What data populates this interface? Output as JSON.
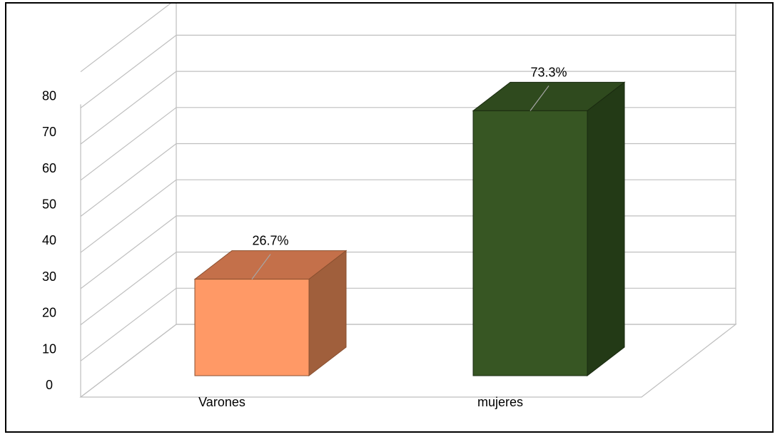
{
  "chart_data": {
    "type": "bar",
    "categories": [
      "Varones",
      "mujeres"
    ],
    "values": [
      26.7,
      73.3
    ],
    "data_labels": [
      "26.7%",
      "73.3%"
    ],
    "yticks": [
      0,
      10,
      20,
      30,
      40,
      50,
      60,
      70,
      80
    ],
    "ylim": [
      0,
      80
    ],
    "grid": true,
    "three_d": true,
    "colors": {
      "Varones": {
        "front": "#ff9966",
        "top": "#c4704a",
        "side": "#a05f3c",
        "edge": "#8a5030"
      },
      "mujeres": {
        "front": "#375623",
        "top": "#2f4a1e",
        "side": "#233a16",
        "edge": "#1a2a10"
      }
    },
    "gridline_color": "#bfbfbf",
    "leader_color": "#a6a6a6"
  }
}
